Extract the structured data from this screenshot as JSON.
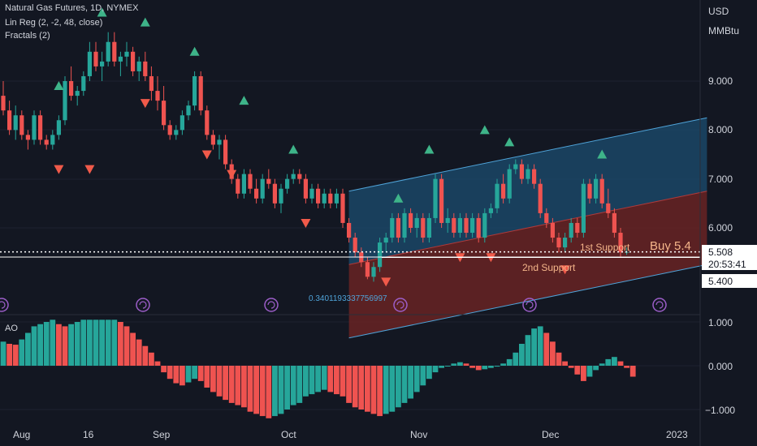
{
  "legend": {
    "line1": "Natural Gas Futures, 1D, NYMEX",
    "line2": "Lin Reg (2, -2, 48, close)",
    "line3": "Fractals (2)"
  },
  "axis": {
    "currency": "USD",
    "unit": "MMBtu",
    "price_ticks": [
      "9.000",
      "8.000",
      "7.000",
      "6.000"
    ],
    "ao_ticks": [
      "1.000",
      "0.000",
      "−1.000"
    ],
    "x_ticks": [
      "Aug",
      "16",
      "Sep",
      "Oct",
      "Nov",
      "Dec",
      "2023"
    ]
  },
  "price_tags": {
    "last": "5.508",
    "countdown": "20:53:41",
    "support": "5.400"
  },
  "annotations": {
    "buy": "Buy 5.4",
    "support1": "1st Support",
    "support2": "2nd Support",
    "pearson": "0.3401193337756997",
    "ao_label": "AO"
  },
  "colors": {
    "bg": "#131722",
    "up": "#26a69a",
    "down": "#ef5350",
    "fractal_up": "#3eb489",
    "fractal_down": "#f05a4a",
    "channel_top": "#1b4a6b",
    "channel_bottom": "#6e2424",
    "channel_line": "#4fa3d8",
    "annotation_text": "#f5b58a",
    "grid": "#1e2230"
  },
  "chart_data": {
    "type": "candlestick",
    "price_range": [
      4.6,
      10.4
    ],
    "ao_range": [
      -1.25,
      1.25
    ],
    "candles": [
      [
        8.7,
        9.0,
        8.3,
        8.4
      ],
      [
        8.4,
        8.6,
        7.9,
        8.0
      ],
      [
        8.0,
        8.5,
        7.8,
        8.3
      ],
      [
        8.3,
        8.4,
        7.8,
        7.9
      ],
      [
        7.9,
        8.0,
        7.6,
        7.8
      ],
      [
        7.8,
        8.4,
        7.7,
        8.3
      ],
      [
        8.3,
        8.4,
        7.7,
        7.8
      ],
      [
        7.8,
        7.9,
        7.6,
        7.7
      ],
      [
        7.7,
        8.0,
        7.6,
        7.9
      ],
      [
        7.9,
        8.3,
        7.8,
        8.2
      ],
      [
        8.2,
        9.1,
        8.1,
        9.0
      ],
      [
        9.0,
        9.3,
        8.6,
        8.7
      ],
      [
        8.7,
        8.9,
        8.5,
        8.8
      ],
      [
        8.8,
        9.2,
        8.7,
        9.1
      ],
      [
        9.1,
        9.8,
        9.0,
        9.6
      ],
      [
        9.6,
        9.8,
        9.2,
        9.3
      ],
      [
        9.3,
        9.6,
        9.0,
        9.4
      ],
      [
        9.4,
        10.0,
        9.3,
        9.8
      ],
      [
        9.8,
        10.0,
        9.3,
        9.4
      ],
      [
        9.4,
        9.6,
        9.1,
        9.5
      ],
      [
        9.5,
        9.8,
        9.3,
        9.6
      ],
      [
        9.6,
        9.7,
        9.1,
        9.2
      ],
      [
        9.2,
        9.5,
        9.0,
        9.4
      ],
      [
        9.4,
        9.6,
        9.0,
        9.1
      ],
      [
        9.1,
        9.3,
        8.6,
        8.8
      ],
      [
        8.8,
        9.1,
        8.4,
        8.6
      ],
      [
        8.6,
        8.9,
        8.0,
        8.1
      ],
      [
        8.1,
        8.2,
        7.8,
        7.9
      ],
      [
        7.9,
        8.1,
        7.8,
        8.0
      ],
      [
        8.0,
        8.4,
        7.9,
        8.3
      ],
      [
        8.3,
        8.6,
        8.2,
        8.5
      ],
      [
        8.5,
        9.2,
        8.4,
        9.1
      ],
      [
        9.1,
        9.2,
        8.3,
        8.4
      ],
      [
        8.4,
        8.5,
        7.8,
        7.9
      ],
      [
        7.9,
        8.0,
        7.6,
        7.7
      ],
      [
        7.7,
        7.9,
        7.4,
        7.8
      ],
      [
        7.8,
        7.9,
        7.2,
        7.3
      ],
      [
        7.3,
        7.4,
        6.9,
        7.0
      ],
      [
        7.0,
        7.1,
        6.6,
        6.7
      ],
      [
        6.7,
        7.2,
        6.6,
        7.1
      ],
      [
        7.1,
        7.2,
        6.7,
        6.8
      ],
      [
        6.8,
        7.0,
        6.5,
        6.6
      ],
      [
        6.6,
        7.1,
        6.5,
        7.0
      ],
      [
        7.0,
        7.2,
        6.8,
        6.9
      ],
      [
        6.9,
        7.0,
        6.4,
        6.5
      ],
      [
        6.5,
        6.9,
        6.3,
        6.8
      ],
      [
        6.8,
        7.1,
        6.7,
        7.0
      ],
      [
        7.0,
        7.2,
        6.9,
        7.1
      ],
      [
        7.1,
        7.2,
        6.9,
        7.0
      ],
      [
        7.0,
        7.1,
        6.5,
        6.6
      ],
      [
        6.6,
        6.9,
        6.5,
        6.8
      ],
      [
        6.8,
        6.9,
        6.4,
        6.5
      ],
      [
        6.5,
        6.8,
        6.4,
        6.7
      ],
      [
        6.7,
        6.8,
        6.4,
        6.5
      ],
      [
        6.5,
        6.8,
        6.4,
        6.7
      ],
      [
        6.7,
        6.8,
        6.0,
        6.1
      ],
      [
        6.1,
        6.2,
        5.7,
        5.8
      ],
      [
        5.8,
        5.9,
        5.4,
        5.5
      ],
      [
        5.5,
        5.6,
        5.2,
        5.3
      ],
      [
        5.3,
        5.4,
        4.95,
        5.0
      ],
      [
        5.0,
        5.3,
        4.9,
        5.2
      ],
      [
        5.2,
        5.8,
        5.1,
        5.7
      ],
      [
        5.7,
        5.9,
        5.5,
        5.8
      ],
      [
        5.8,
        6.3,
        5.7,
        6.2
      ],
      [
        6.2,
        6.3,
        5.7,
        5.8
      ],
      [
        5.8,
        6.4,
        5.7,
        6.3
      ],
      [
        6.3,
        6.4,
        5.9,
        6.0
      ],
      [
        6.0,
        6.3,
        5.8,
        6.2
      ],
      [
        6.2,
        6.3,
        5.7,
        5.8
      ],
      [
        5.8,
        6.3,
        5.7,
        6.2
      ],
      [
        6.2,
        7.1,
        6.1,
        7.0
      ],
      [
        7.0,
        7.1,
        6.0,
        6.1
      ],
      [
        6.1,
        6.4,
        5.9,
        6.2
      ],
      [
        6.2,
        6.3,
        5.8,
        5.9
      ],
      [
        5.9,
        6.3,
        5.8,
        6.2
      ],
      [
        6.2,
        6.3,
        5.8,
        5.9
      ],
      [
        5.9,
        6.3,
        5.8,
        6.2
      ],
      [
        6.2,
        6.3,
        5.7,
        5.8
      ],
      [
        5.8,
        6.4,
        5.7,
        6.3
      ],
      [
        6.3,
        6.5,
        6.2,
        6.4
      ],
      [
        6.4,
        7.0,
        6.3,
        6.9
      ],
      [
        6.9,
        7.1,
        6.5,
        6.6
      ],
      [
        6.6,
        7.3,
        6.5,
        7.2
      ],
      [
        7.2,
        7.4,
        7.1,
        7.3
      ],
      [
        7.3,
        7.4,
        6.9,
        7.0
      ],
      [
        7.0,
        7.3,
        6.9,
        7.2
      ],
      [
        7.2,
        7.3,
        6.8,
        6.9
      ],
      [
        6.9,
        7.0,
        6.2,
        6.3
      ],
      [
        6.3,
        6.4,
        6.0,
        6.1
      ],
      [
        6.1,
        6.2,
        5.7,
        5.8
      ],
      [
        5.8,
        5.9,
        5.5,
        5.6
      ],
      [
        5.6,
        5.9,
        5.5,
        5.8
      ],
      [
        5.8,
        6.2,
        5.7,
        6.1
      ],
      [
        6.1,
        6.2,
        5.8,
        5.9
      ],
      [
        5.9,
        7.0,
        5.8,
        6.9
      ],
      [
        6.9,
        7.0,
        6.5,
        6.6
      ],
      [
        6.6,
        7.1,
        6.5,
        7.0
      ],
      [
        7.0,
        7.1,
        6.4,
        6.5
      ],
      [
        6.5,
        6.8,
        6.2,
        6.3
      ],
      [
        6.3,
        6.4,
        5.8,
        5.9
      ],
      [
        5.9,
        6.0,
        5.4,
        5.5
      ],
      [
        5.5,
        5.6,
        5.45,
        5.51
      ]
    ],
    "ao": [
      0.55,
      0.5,
      0.48,
      0.6,
      0.75,
      0.9,
      0.95,
      1.0,
      1.05,
      0.95,
      0.9,
      0.95,
      1.0,
      1.05,
      1.05,
      1.05,
      1.05,
      1.05,
      1.05,
      1.0,
      0.9,
      0.75,
      0.6,
      0.45,
      0.3,
      0.1,
      -0.15,
      -0.3,
      -0.4,
      -0.45,
      -0.38,
      -0.3,
      -0.35,
      -0.5,
      -0.6,
      -0.7,
      -0.78,
      -0.85,
      -0.9,
      -0.95,
      -1.05,
      -1.1,
      -1.15,
      -1.2,
      -1.15,
      -1.1,
      -1.0,
      -0.9,
      -0.85,
      -0.7,
      -0.65,
      -0.6,
      -0.55,
      -0.6,
      -0.65,
      -0.7,
      -0.85,
      -0.95,
      -1.0,
      -1.05,
      -1.1,
      -1.15,
      -1.1,
      -1.05,
      -0.95,
      -0.85,
      -0.75,
      -0.6,
      -0.45,
      -0.3,
      -0.15,
      -0.05,
      0.0,
      0.05,
      0.08,
      0.05,
      -0.05,
      -0.1,
      -0.08,
      -0.05,
      -0.02,
      0.05,
      0.15,
      0.3,
      0.5,
      0.7,
      0.85,
      0.9,
      0.75,
      0.55,
      0.3,
      0.1,
      -0.05,
      -0.2,
      -0.35,
      -0.25,
      -0.1,
      0.05,
      0.15,
      0.2,
      0.1,
      -0.05,
      -0.25
    ],
    "fractals_up": [
      [
        9,
        8.9
      ],
      [
        16,
        10.4
      ],
      [
        23,
        10.2
      ],
      [
        31,
        9.6
      ],
      [
        39,
        8.6
      ],
      [
        47,
        7.6
      ],
      [
        64,
        6.6
      ],
      [
        69,
        7.6
      ],
      [
        78,
        8.0
      ],
      [
        82,
        7.75
      ],
      [
        97,
        7.5
      ]
    ],
    "fractals_down": [
      [
        9,
        7.2
      ],
      [
        14,
        7.2
      ],
      [
        23,
        8.55
      ],
      [
        33,
        7.5
      ],
      [
        37,
        7.1
      ],
      [
        49,
        6.1
      ],
      [
        62,
        4.9
      ],
      [
        74,
        5.4
      ],
      [
        79,
        5.4
      ],
      [
        91,
        5.15
      ]
    ],
    "regression_channel": {
      "x_start": 56,
      "x_end": 114,
      "mid_start": 5.25,
      "mid_end": 6.75,
      "offset": 1.5
    },
    "levels": [
      5.508,
      5.4
    ],
    "x_ticks": [
      "Aug",
      "16",
      "Sep",
      "Oct",
      "Nov",
      "Dec",
      "2023"
    ]
  }
}
